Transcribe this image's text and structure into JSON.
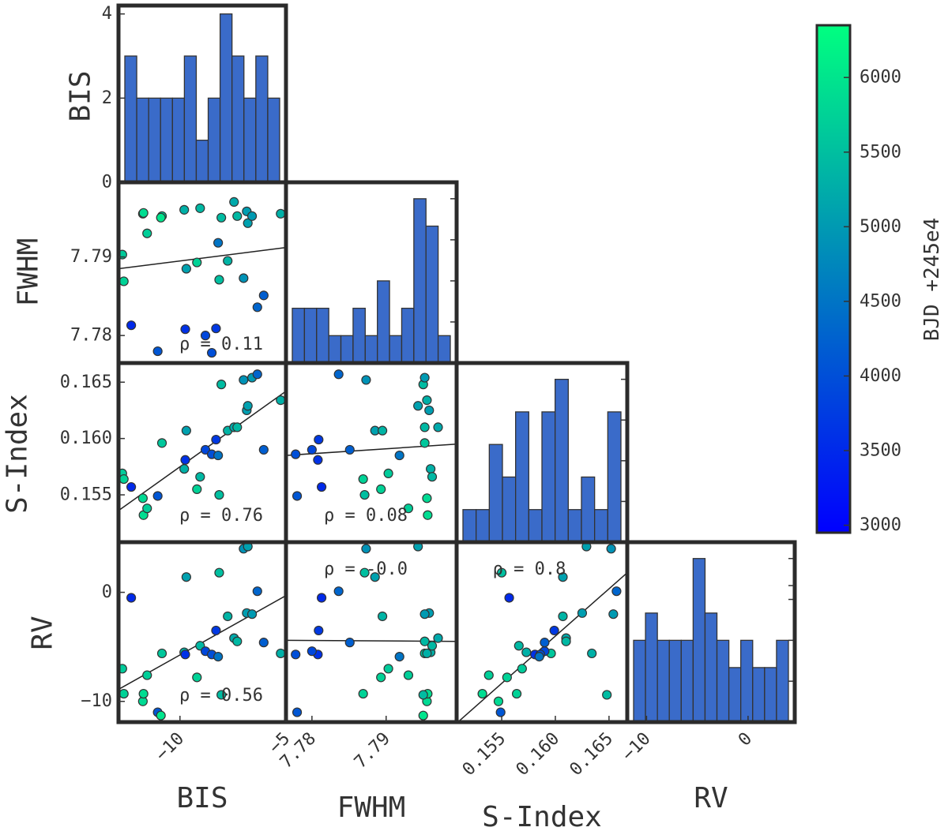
{
  "chart_data": {
    "type": "scatter-matrix",
    "variables": [
      "BIS",
      "FWHM",
      "S-Index",
      "RV"
    ],
    "colorbar": {
      "label": "BJD +245e4",
      "range": [
        2950,
        6350
      ],
      "ticks": [
        3000,
        3500,
        4000,
        4500,
        5000,
        5500,
        6000
      ],
      "tick_labels": [
        "3000",
        "3500",
        "4000",
        "4500",
        "5000",
        "5500",
        "6000"
      ],
      "colors": [
        "#0000ff",
        "#00ff80"
      ]
    },
    "axis_labels": {
      "x": [
        "BIS",
        "FWHM",
        "S-Index",
        "RV"
      ],
      "y": [
        "BIS",
        "FWHM",
        "S-Index",
        "RV"
      ]
    },
    "histograms": {
      "BIS": {
        "ylim": [
          0,
          4.2
        ],
        "yticks": [
          0,
          2,
          4
        ],
        "ytick_labels": [
          "0",
          "2",
          "4"
        ],
        "counts": [
          3,
          2,
          2,
          2,
          2,
          3,
          1,
          2,
          4,
          3,
          2,
          3,
          2
        ]
      },
      "FWHM": {
        "counts": [
          2,
          2,
          2,
          1,
          1,
          2,
          1,
          3,
          1,
          2,
          6,
          5,
          1
        ]
      },
      "S-Index": {
        "counts": [
          1,
          1,
          3,
          2,
          4,
          1,
          4,
          5,
          1,
          2,
          1,
          4
        ]
      },
      "RV": {
        "counts": [
          3,
          4,
          3,
          3,
          3,
          6,
          4,
          3,
          2,
          3,
          2,
          2,
          3
        ]
      }
    },
    "ranges": {
      "BIS": [
        -12.9,
        -5.0
      ],
      "FWHM": [
        7.7765,
        7.7995
      ],
      "S-Index": [
        0.1508,
        0.1667
      ],
      "RV": [
        -11.9,
        4.6
      ]
    },
    "ticks": {
      "BIS": {
        "values": [
          -10,
          -5
        ],
        "labels": [
          "−10",
          "−5"
        ]
      },
      "FWHM": {
        "values": [
          7.78,
          7.79
        ],
        "labels": [
          "7.78",
          "7.79"
        ]
      },
      "S-Index": {
        "values": [
          0.155,
          0.16,
          0.165
        ],
        "labels": [
          "0.155",
          "0.160",
          "0.165"
        ]
      },
      "RV": {
        "values": [
          -10,
          0
        ],
        "labels": [
          "−10",
          "0"
        ]
      }
    },
    "correlations": [
      {
        "x": "BIS",
        "y": "FWHM",
        "label": "ρ = 0.11",
        "fit": [
          [
            -12.9,
            7.7885
          ],
          [
            -5.0,
            7.7912
          ]
        ]
      },
      {
        "x": "BIS",
        "y": "S-Index",
        "label": "ρ = 0.76",
        "fit": [
          [
            -12.9,
            0.1536
          ],
          [
            -5.0,
            0.1642
          ]
        ]
      },
      {
        "x": "FWHM",
        "y": "S-Index",
        "label": "ρ = 0.08",
        "fit": [
          [
            7.7765,
            0.1585
          ],
          [
            7.7995,
            0.1595
          ]
        ]
      },
      {
        "x": "BIS",
        "y": "RV",
        "label": "ρ = 0.56",
        "fit": [
          [
            -12.9,
            -8.9
          ],
          [
            -5.0,
            -0.3
          ]
        ]
      },
      {
        "x": "FWHM",
        "y": "RV",
        "label": "ρ = -0.0",
        "fit": [
          [
            7.7765,
            -4.4
          ],
          [
            7.7995,
            -4.5
          ]
        ]
      },
      {
        "x": "S-Index",
        "y": "RV",
        "label": "ρ = 0.8",
        "fit": [
          [
            0.1508,
            -12.0
          ],
          [
            0.1667,
            1.8
          ]
        ]
      }
    ],
    "observations": [
      {
        "BIS": -12.72,
        "FWHM": 7.7903,
        "S": 0.1569,
        "RV": -7.0,
        "BJD": 5650
      },
      {
        "BIS": -12.65,
        "FWHM": 7.7869,
        "S": 0.1564,
        "RV": -9.3,
        "BJD": 5750
      },
      {
        "BIS": -12.3,
        "FWHM": 7.7813,
        "S": 0.1557,
        "RV": -0.5,
        "BJD": 3500
      },
      {
        "BIS": -11.75,
        "FWHM": 7.7955,
        "S": 0.1547,
        "RV": -10.0,
        "BJD": 5850
      },
      {
        "BIS": -11.72,
        "FWHM": 7.7956,
        "S": 0.1532,
        "RV": -9.3,
        "BJD": 5900
      },
      {
        "BIS": -11.55,
        "FWHM": 7.793,
        "S": 0.1538,
        "RV": -7.6,
        "BJD": 5700
      },
      {
        "BIS": -11.05,
        "FWHM": 7.778,
        "S": 0.1549,
        "RV": -11.0,
        "BJD": 4100
      },
      {
        "BIS": -10.85,
        "FWHM": 7.7952,
        "S": 0.1596,
        "RV": -5.6,
        "BJD": 5600
      },
      {
        "BIS": -10.9,
        "FWHM": 7.795,
        "S": 0.151,
        "RV": -11.3,
        "BJD": 6000
      },
      {
        "BIS": -9.8,
        "FWHM": 7.796,
        "S": 0.1573,
        "RV": -5.5,
        "BJD": 5300
      },
      {
        "BIS": -9.75,
        "FWHM": 7.7808,
        "S": 0.1581,
        "RV": -5.7,
        "BJD": 3600
      },
      {
        "BIS": -9.7,
        "FWHM": 7.7885,
        "S": 0.1607,
        "RV": 1.4,
        "BJD": 5100
      },
      {
        "BIS": -9.2,
        "FWHM": 7.7893,
        "S": 0.1555,
        "RV": -7.8,
        "BJD": 5750
      },
      {
        "BIS": -9.05,
        "FWHM": 7.7962,
        "S": 0.1566,
        "RV": -4.9,
        "BJD": 5400
      },
      {
        "BIS": -8.8,
        "FWHM": 7.78,
        "S": 0.159,
        "RV": -5.4,
        "BJD": 3900
      },
      {
        "BIS": -8.5,
        "FWHM": 7.7778,
        "S": 0.1586,
        "RV": -5.7,
        "BJD": 4000
      },
      {
        "BIS": -8.3,
        "FWHM": 7.7809,
        "S": 0.1599,
        "RV": -3.5,
        "BJD": 3700
      },
      {
        "BIS": -8.05,
        "FWHM": 7.795,
        "S": 0.1648,
        "RV": -9.4,
        "BJD": 5450
      },
      {
        "BIS": -8.2,
        "FWHM": 7.7918,
        "S": 0.1585,
        "RV": -5.9,
        "BJD": 4500
      },
      {
        "BIS": -8.15,
        "FWHM": 7.7871,
        "S": 0.155,
        "RV": 1.8,
        "BJD": 5500
      },
      {
        "BIS": -7.75,
        "FWHM": 7.7895,
        "S": 0.1607,
        "RV": -2.2,
        "BJD": 5350
      },
      {
        "BIS": -7.45,
        "FWHM": 7.797,
        "S": 0.161,
        "RV": -4.2,
        "BJD": 5200
      },
      {
        "BIS": -7.3,
        "FWHM": 7.7952,
        "S": 0.161,
        "RV": -4.5,
        "BJD": 5400
      },
      {
        "BIS": -7.0,
        "FWHM": 7.7873,
        "S": 0.1652,
        "RV": 4.0,
        "BJD": 4900
      },
      {
        "BIS": -6.85,
        "FWHM": 7.7958,
        "S": 0.1625,
        "RV": -1.9,
        "BJD": 5050
      },
      {
        "BIS": -6.8,
        "FWHM": 7.7943,
        "S": 0.1629,
        "RV": 4.2,
        "BJD": 5100
      },
      {
        "BIS": -6.6,
        "FWHM": 7.7952,
        "S": 0.1654,
        "RV": -2.0,
        "BJD": 5000
      },
      {
        "BIS": -6.35,
        "FWHM": 7.7836,
        "S": 0.1657,
        "RV": 0.1,
        "BJD": 4300
      },
      {
        "BIS": -6.05,
        "FWHM": 7.7851,
        "S": 0.159,
        "RV": -4.6,
        "BJD": 4200
      },
      {
        "BIS": -5.25,
        "FWHM": 7.7955,
        "S": 0.1634,
        "RV": -5.6,
        "BJD": 5300
      }
    ]
  }
}
